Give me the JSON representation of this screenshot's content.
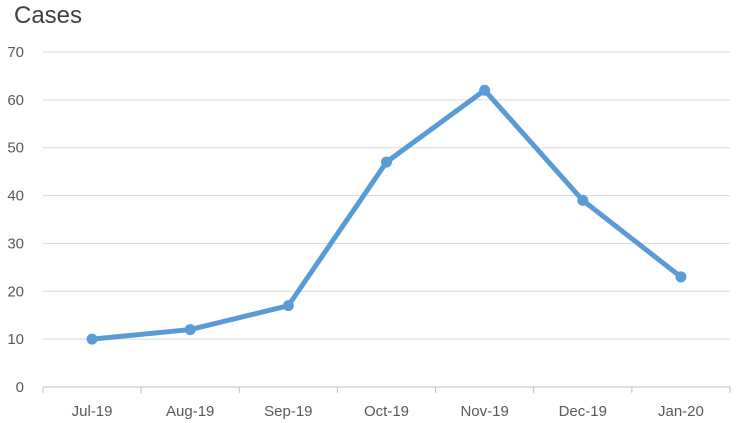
{
  "chart_data": {
    "type": "line",
    "title": "Cases",
    "xlabel": "",
    "ylabel": "",
    "categories": [
      "Jul-19",
      "Aug-19",
      "Sep-19",
      "Oct-19",
      "Nov-19",
      "Dec-19",
      "Jan-20"
    ],
    "series": [
      {
        "values": [
          10,
          12,
          17,
          47,
          62,
          39,
          23
        ]
      }
    ],
    "ylim": [
      0,
      70
    ],
    "yticks": [
      "0",
      "10",
      "20",
      "30",
      "40",
      "50",
      "60",
      "70"
    ],
    "grid": true,
    "legend": "none",
    "colors": {
      "line": "#5b9bd5",
      "grid": "#d9d9d9",
      "axis": "#bfbfbf",
      "text": "#595959",
      "title": "#404040"
    }
  }
}
